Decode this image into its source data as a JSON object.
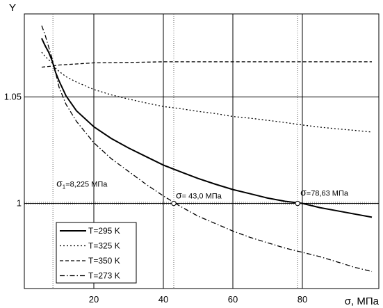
{
  "chart_data": {
    "type": "line",
    "title": "",
    "xlabel": "σ, МПа",
    "ylabel": "Y",
    "xlim": [
      0,
      102
    ],
    "ylim": [
      0.96,
      1.089
    ],
    "grid": true,
    "x_ticks": [
      20,
      40,
      60,
      80
    ],
    "y_ticks": [
      1,
      1.05
    ],
    "x_tick_labels": [
      "20",
      "40",
      "60",
      "80"
    ],
    "y_tick_labels": [
      "1",
      "1.05"
    ],
    "legend_position": "bottom-left",
    "series": [
      {
        "name": "T=295 K",
        "dash": "solid",
        "x": [
          5,
          6,
          7,
          8,
          9,
          10,
          12,
          15,
          20,
          25,
          30,
          35,
          40,
          45,
          50,
          55,
          60,
          65,
          70,
          75,
          80,
          85,
          90,
          95,
          100
        ],
        "y": [
          1.0775,
          1.074,
          1.071,
          1.067,
          1.0615,
          1.0575,
          1.0505,
          1.0435,
          1.036,
          1.0305,
          1.026,
          1.022,
          1.018,
          1.0148,
          1.0117,
          1.009,
          1.0065,
          1.0045,
          1.0025,
          1.001,
          1.0,
          0.998,
          0.9965,
          0.995,
          0.9935
        ]
      },
      {
        "name": "T=325 K",
        "dash": "dotted",
        "x": [
          5,
          6,
          7,
          8,
          9,
          10,
          12,
          15,
          20,
          25,
          30,
          35,
          40,
          45,
          50,
          55,
          60,
          65,
          70,
          75,
          80,
          85,
          90,
          95,
          100
        ],
        "y": [
          1.071,
          1.069,
          1.0675,
          1.066,
          1.0635,
          1.062,
          1.0595,
          1.057,
          1.0535,
          1.051,
          1.049,
          1.0472,
          1.0455,
          1.0445,
          1.0432,
          1.0422,
          1.0408,
          1.04,
          1.039,
          1.038,
          1.0368,
          1.0358,
          1.035,
          1.0343,
          1.0335
        ]
      },
      {
        "name": "T=350 K",
        "dash": "dashed",
        "x": [
          5,
          8,
          10,
          15,
          20,
          30,
          40,
          50,
          60,
          70,
          80,
          90,
          100
        ],
        "y": [
          1.064,
          1.0645,
          1.065,
          1.0655,
          1.066,
          1.0662,
          1.0665,
          1.0665,
          1.0665,
          1.0665,
          1.0665,
          1.0665,
          1.0665
        ]
      },
      {
        "name": "T=273 K",
        "dash": "dash-dot",
        "x": [
          5,
          6,
          7,
          8,
          9,
          10,
          12,
          15,
          20,
          25,
          30,
          35,
          40,
          45,
          50,
          55,
          60,
          65,
          70,
          75,
          80,
          85,
          90,
          95,
          100
        ],
        "y": [
          1.0835,
          1.079,
          1.0735,
          1.068,
          1.0615,
          1.0545,
          1.0465,
          1.0385,
          1.0285,
          1.021,
          1.015,
          1.009,
          1.0035,
          0.9985,
          0.994,
          0.9905,
          0.987,
          0.984,
          0.9815,
          0.979,
          0.977,
          0.975,
          0.9725,
          0.97,
          0.968
        ]
      }
    ],
    "vertical_markers": [
      8.225,
      43.0,
      78.63
    ],
    "points": [
      {
        "x": 43.0,
        "y": 1.0
      },
      {
        "x": 78.63,
        "y": 1.0
      }
    ],
    "annotations": [
      {
        "sym": "σ",
        "sub": "1",
        "rest": "=8,225 МПа",
        "x": 8.225,
        "y": 1.0,
        "placement": "above-right of marker"
      },
      {
        "sym": "σ",
        "sub": "",
        "rest": "= 43,0 МПа",
        "x": 43.0,
        "y": 1.0,
        "placement": "above-right of point"
      },
      {
        "sym": "σ",
        "sub": "",
        "rest": "=78,63 МПа",
        "x": 78.63,
        "y": 1.0,
        "placement": "above-right of point"
      }
    ]
  }
}
